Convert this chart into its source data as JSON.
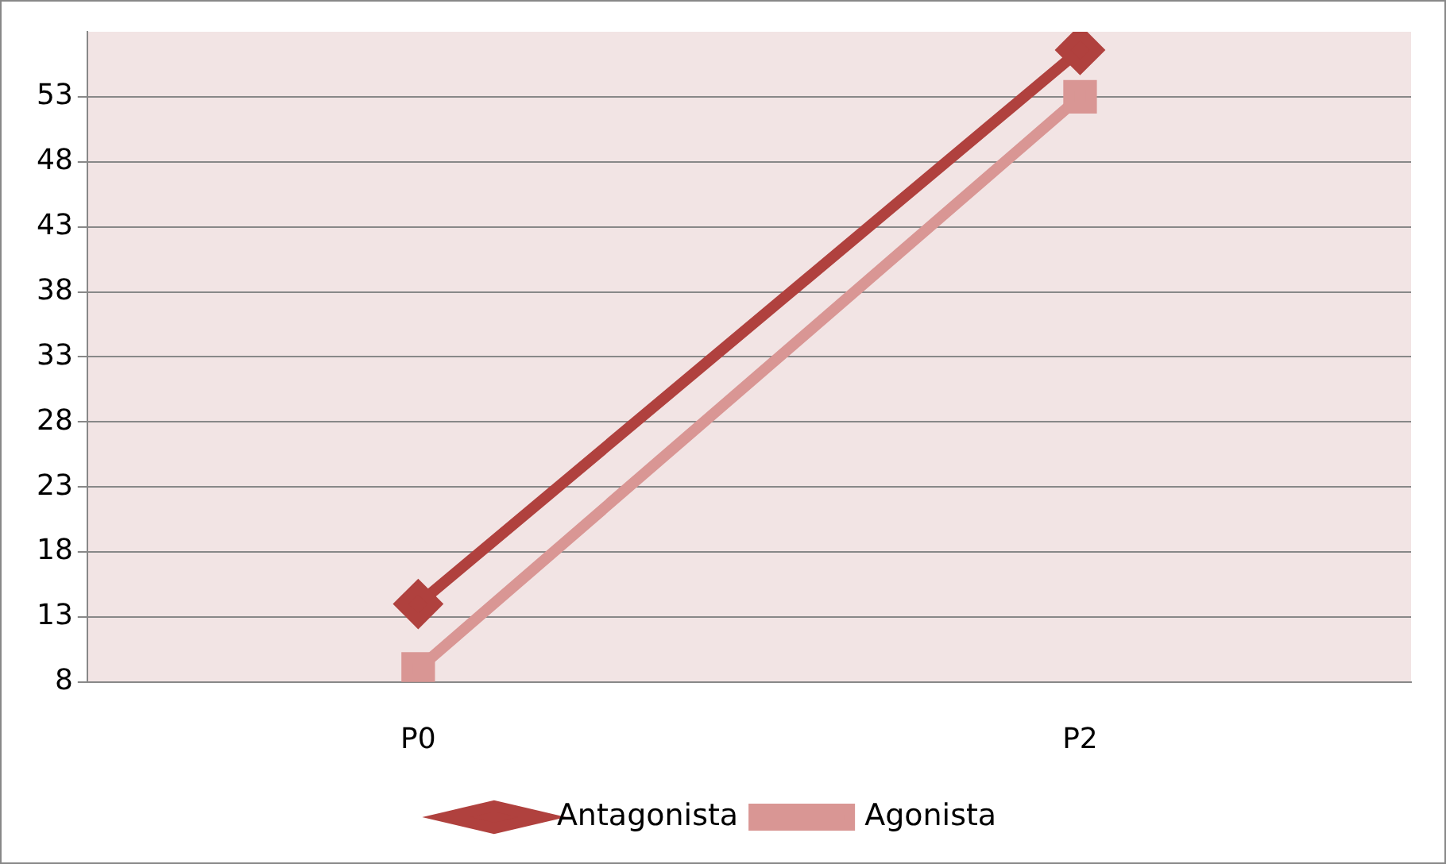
{
  "chart_data": {
    "type": "line",
    "categories": [
      "P0",
      "P2"
    ],
    "series": [
      {
        "name": "Antagonista",
        "color": "#b0413e",
        "values": [
          14,
          56.6
        ],
        "marker": "diamond"
      },
      {
        "name": "Agonista",
        "color": "#d99694",
        "values": [
          9,
          53
        ],
        "marker": "square"
      }
    ],
    "ylim": [
      8,
      58
    ],
    "yticks": [
      8,
      13,
      18,
      23,
      28,
      33,
      38,
      43,
      48,
      53
    ],
    "grid": "y",
    "legend": "bottom"
  }
}
